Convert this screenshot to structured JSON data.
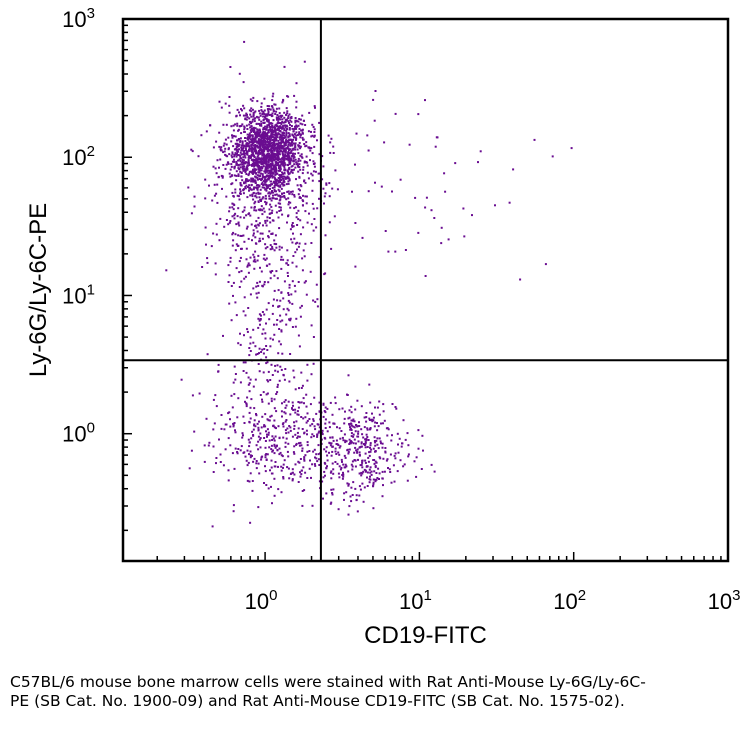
{
  "chart_data": {
    "type": "scatter",
    "title": "",
    "xlabel": "CD19-FITC",
    "ylabel": "Ly-6G/Ly-6C-PE",
    "x_scale": "log",
    "y_scale": "log",
    "xlim": [
      0.12,
      1000
    ],
    "ylim": [
      0.12,
      1000
    ],
    "x_ticks": [
      {
        "value": 1,
        "base": "10",
        "exp": "0"
      },
      {
        "value": 10,
        "base": "10",
        "exp": "1"
      },
      {
        "value": 100,
        "base": "10",
        "exp": "2"
      },
      {
        "value": 1000,
        "base": "10",
        "exp": "3"
      }
    ],
    "y_ticks": [
      {
        "value": 1,
        "base": "10",
        "exp": "0"
      },
      {
        "value": 10,
        "base": "10",
        "exp": "1"
      },
      {
        "value": 100,
        "base": "10",
        "exp": "2"
      },
      {
        "value": 1000,
        "base": "10",
        "exp": "3"
      }
    ],
    "quadrant_gates": {
      "x": 2.3,
      "y": 3.4
    },
    "grid": false,
    "point_color": "#6a0d91",
    "populations": [
      {
        "center_x": 1.05,
        "center_y": 110,
        "count": 1700,
        "spread_x_decades": 0.12,
        "spread_y_decades": 0.16
      },
      {
        "center_x": 0.95,
        "center_y": 50,
        "count": 420,
        "spread_x_decades": 0.2,
        "spread_y_decades": 0.3
      },
      {
        "center_x": 1.1,
        "center_y": 8,
        "count": 260,
        "spread_x_decades": 0.15,
        "spread_y_decades": 0.4
      },
      {
        "center_x": 1.1,
        "center_y": 0.9,
        "count": 380,
        "spread_x_decades": 0.2,
        "spread_y_decades": 0.22
      },
      {
        "center_x": 4.0,
        "center_y": 0.75,
        "count": 430,
        "spread_x_decades": 0.17,
        "spread_y_decades": 0.18
      },
      {
        "center_x": 6.0,
        "center_y": 60,
        "count": 70,
        "spread_x_decades": 0.45,
        "spread_y_decades": 0.35
      }
    ]
  },
  "caption": "C57BL/6 mouse bone marrow cells were stained with Rat Anti-Mouse Ly-6G/Ly-6C-PE (SB Cat. No. 1900-09) and Rat Anti-Mouse CD19-FITC (SB Cat. No. 1575-02)."
}
